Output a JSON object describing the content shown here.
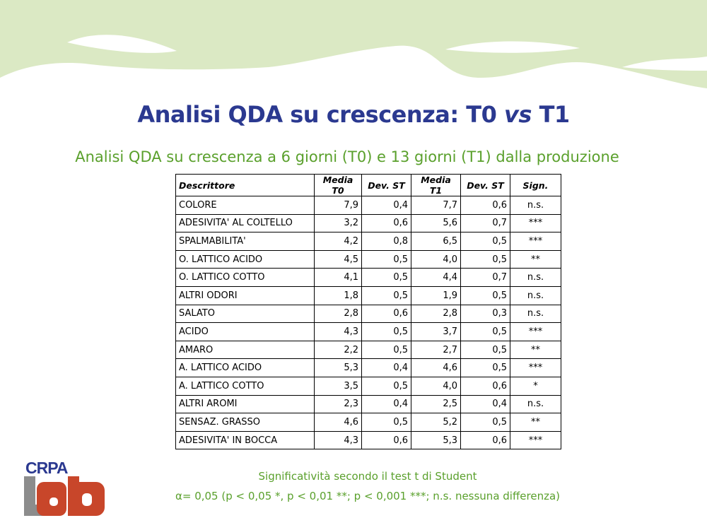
{
  "slide": {
    "title_prefix": "Analisi QDA su crescenza: T0 ",
    "title_vs": "vs",
    "title_suffix": " T1",
    "subtitle": "Analisi QDA su crescenza a 6 giorni (T0) e 13 giorni (T1) dalla produzione"
  },
  "table": {
    "headers": [
      "Descrittore",
      "Media T0",
      "Dev. ST",
      "Media T1",
      "Dev. ST",
      "Sign."
    ],
    "rows": [
      [
        "COLORE",
        "7,9",
        "0,4",
        "7,7",
        "0,6",
        "n.s."
      ],
      [
        "ADESIVITA' AL COLTELLO",
        "3,2",
        "0,6",
        "5,6",
        "0,7",
        "***"
      ],
      [
        "SPALMABILITA'",
        "4,2",
        "0,8",
        "6,5",
        "0,5",
        "***"
      ],
      [
        "O. LATTICO ACIDO",
        "4,5",
        "0,5",
        "4,0",
        "0,5",
        "**"
      ],
      [
        "O. LATTICO COTTO",
        "4,1",
        "0,5",
        "4,4",
        "0,7",
        "n.s."
      ],
      [
        "ALTRI ODORI",
        "1,8",
        "0,5",
        "1,9",
        "0,5",
        "n.s."
      ],
      [
        "SALATO",
        "2,8",
        "0,6",
        "2,8",
        "0,3",
        "n.s."
      ],
      [
        "ACIDO",
        "4,3",
        "0,5",
        "3,7",
        "0,5",
        "***"
      ],
      [
        "AMARO",
        "2,2",
        "0,5",
        "2,7",
        "0,5",
        "**"
      ],
      [
        "A. LATTICO ACIDO",
        "5,3",
        "0,4",
        "4,6",
        "0,5",
        "***"
      ],
      [
        "A. LATTICO COTTO",
        "3,5",
        "0,5",
        "4,0",
        "0,6",
        "*"
      ],
      [
        "ALTRI AROMI",
        "2,3",
        "0,4",
        "2,5",
        "0,4",
        "n.s."
      ],
      [
        "SENSAZ. GRASSO",
        "4,6",
        "0,5",
        "5,2",
        "0,5",
        "**"
      ],
      [
        "ADESIVITA' IN BOCCA",
        "4,3",
        "0,6",
        "5,3",
        "0,6",
        "***"
      ]
    ]
  },
  "notes": {
    "line1": "Significatività secondo il test t di Student",
    "line2": "α= 0,05 (p < 0,05 *, p < 0,01 **; p < 0,001 ***; n.s. nessuna differenza)"
  },
  "logo": {
    "top_text": "CRPA",
    "bottom_text": "Lab"
  },
  "colors": {
    "title": "#2b3990",
    "accent_green": "#5aa02c",
    "wave_green": "#dbe9c4",
    "logo_red": "#c8462a",
    "logo_grey": "#8c8c8c"
  }
}
